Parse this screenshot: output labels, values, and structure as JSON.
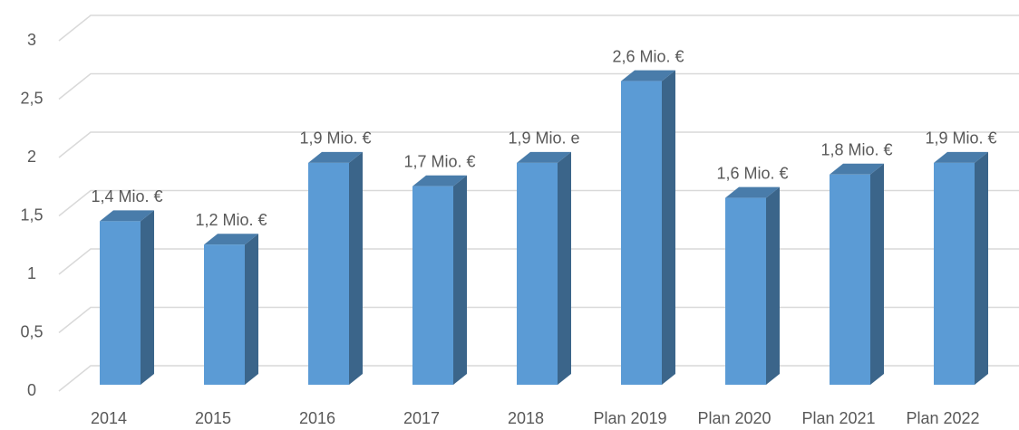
{
  "chart_data": {
    "type": "bar3d",
    "categories": [
      "2014",
      "2015",
      "2016",
      "2017",
      "2018",
      "Plan 2019",
      "Plan 2020",
      "Plan 2021",
      "Plan 2022"
    ],
    "values": [
      1.4,
      1.2,
      1.9,
      1.7,
      1.9,
      2.6,
      1.6,
      1.8,
      1.9
    ],
    "value_labels": [
      "1,4 Mio. €",
      "1,2 Mio. €",
      "1,9 Mio. €",
      "1,7 Mio. €",
      "1,9 Mio. e",
      "2,6 Mio. €",
      "1,6 Mio. €",
      "1,8 Mio. €",
      "1,9 Mio. €"
    ],
    "color": "#5b9bd5",
    "ylim": [
      0,
      3
    ],
    "yticks": [
      0,
      {
        "value": 0.5,
        "label": "0,5"
      },
      1,
      {
        "value": 1.5,
        "label": "1,5"
      },
      2,
      {
        "value": 2.5,
        "label": "2,5"
      },
      3
    ],
    "grid": true
  }
}
